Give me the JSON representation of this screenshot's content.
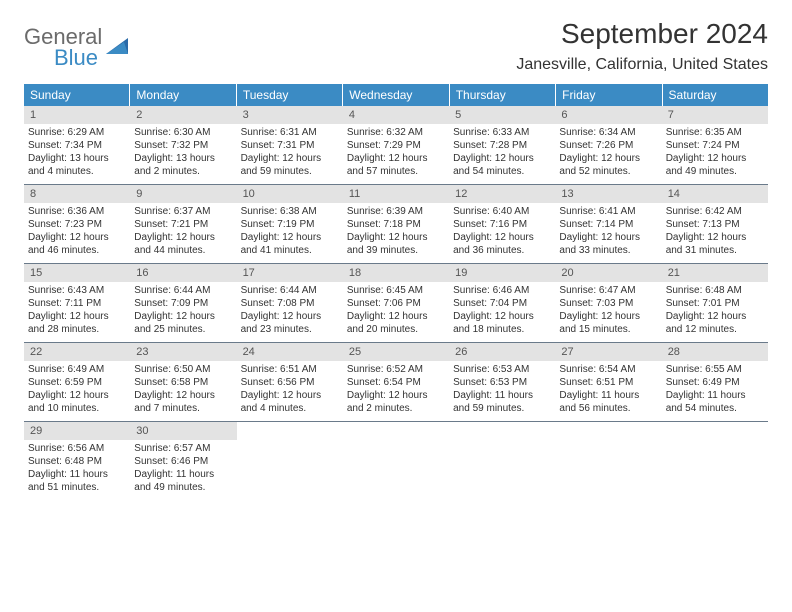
{
  "logo": {
    "general": "General",
    "blue": "Blue"
  },
  "title": "September 2024",
  "location": "Janesville, California, United States",
  "style": {
    "header_bg": "#3b8bc4",
    "header_text": "#ffffff",
    "daynum_bg": "#e3e3e3",
    "week_border": "#6a7a8a",
    "title_fontsize": 28,
    "location_fontsize": 16,
    "weekday_fontsize": 12,
    "cell_fontsize": 10
  },
  "weekdays": [
    "Sunday",
    "Monday",
    "Tuesday",
    "Wednesday",
    "Thursday",
    "Friday",
    "Saturday"
  ],
  "days": [
    {
      "n": "1",
      "sr": "6:29 AM",
      "ss": "7:34 PM",
      "dl": "13 hours and 4 minutes."
    },
    {
      "n": "2",
      "sr": "6:30 AM",
      "ss": "7:32 PM",
      "dl": "13 hours and 2 minutes."
    },
    {
      "n": "3",
      "sr": "6:31 AM",
      "ss": "7:31 PM",
      "dl": "12 hours and 59 minutes."
    },
    {
      "n": "4",
      "sr": "6:32 AM",
      "ss": "7:29 PM",
      "dl": "12 hours and 57 minutes."
    },
    {
      "n": "5",
      "sr": "6:33 AM",
      "ss": "7:28 PM",
      "dl": "12 hours and 54 minutes."
    },
    {
      "n": "6",
      "sr": "6:34 AM",
      "ss": "7:26 PM",
      "dl": "12 hours and 52 minutes."
    },
    {
      "n": "7",
      "sr": "6:35 AM",
      "ss": "7:24 PM",
      "dl": "12 hours and 49 minutes."
    },
    {
      "n": "8",
      "sr": "6:36 AM",
      "ss": "7:23 PM",
      "dl": "12 hours and 46 minutes."
    },
    {
      "n": "9",
      "sr": "6:37 AM",
      "ss": "7:21 PM",
      "dl": "12 hours and 44 minutes."
    },
    {
      "n": "10",
      "sr": "6:38 AM",
      "ss": "7:19 PM",
      "dl": "12 hours and 41 minutes."
    },
    {
      "n": "11",
      "sr": "6:39 AM",
      "ss": "7:18 PM",
      "dl": "12 hours and 39 minutes."
    },
    {
      "n": "12",
      "sr": "6:40 AM",
      "ss": "7:16 PM",
      "dl": "12 hours and 36 minutes."
    },
    {
      "n": "13",
      "sr": "6:41 AM",
      "ss": "7:14 PM",
      "dl": "12 hours and 33 minutes."
    },
    {
      "n": "14",
      "sr": "6:42 AM",
      "ss": "7:13 PM",
      "dl": "12 hours and 31 minutes."
    },
    {
      "n": "15",
      "sr": "6:43 AM",
      "ss": "7:11 PM",
      "dl": "12 hours and 28 minutes."
    },
    {
      "n": "16",
      "sr": "6:44 AM",
      "ss": "7:09 PM",
      "dl": "12 hours and 25 minutes."
    },
    {
      "n": "17",
      "sr": "6:44 AM",
      "ss": "7:08 PM",
      "dl": "12 hours and 23 minutes."
    },
    {
      "n": "18",
      "sr": "6:45 AM",
      "ss": "7:06 PM",
      "dl": "12 hours and 20 minutes."
    },
    {
      "n": "19",
      "sr": "6:46 AM",
      "ss": "7:04 PM",
      "dl": "12 hours and 18 minutes."
    },
    {
      "n": "20",
      "sr": "6:47 AM",
      "ss": "7:03 PM",
      "dl": "12 hours and 15 minutes."
    },
    {
      "n": "21",
      "sr": "6:48 AM",
      "ss": "7:01 PM",
      "dl": "12 hours and 12 minutes."
    },
    {
      "n": "22",
      "sr": "6:49 AM",
      "ss": "6:59 PM",
      "dl": "12 hours and 10 minutes."
    },
    {
      "n": "23",
      "sr": "6:50 AM",
      "ss": "6:58 PM",
      "dl": "12 hours and 7 minutes."
    },
    {
      "n": "24",
      "sr": "6:51 AM",
      "ss": "6:56 PM",
      "dl": "12 hours and 4 minutes."
    },
    {
      "n": "25",
      "sr": "6:52 AM",
      "ss": "6:54 PM",
      "dl": "12 hours and 2 minutes."
    },
    {
      "n": "26",
      "sr": "6:53 AM",
      "ss": "6:53 PM",
      "dl": "11 hours and 59 minutes."
    },
    {
      "n": "27",
      "sr": "6:54 AM",
      "ss": "6:51 PM",
      "dl": "11 hours and 56 minutes."
    },
    {
      "n": "28",
      "sr": "6:55 AM",
      "ss": "6:49 PM",
      "dl": "11 hours and 54 minutes."
    },
    {
      "n": "29",
      "sr": "6:56 AM",
      "ss": "6:48 PM",
      "dl": "11 hours and 51 minutes."
    },
    {
      "n": "30",
      "sr": "6:57 AM",
      "ss": "6:46 PM",
      "dl": "11 hours and 49 minutes."
    }
  ],
  "labels": {
    "sunrise": "Sunrise:",
    "sunset": "Sunset:",
    "daylight": "Daylight:"
  },
  "layout": {
    "start_weekday": 0,
    "total_cells": 35
  }
}
